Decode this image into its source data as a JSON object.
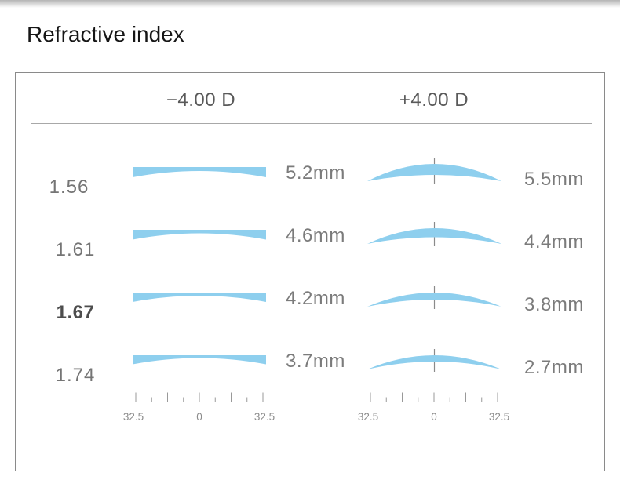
{
  "page": {
    "title": "Refractive index"
  },
  "panel": {
    "columns": [
      {
        "id": "minus",
        "header": "−4.00 D"
      },
      {
        "id": "plus",
        "header": "+4.00 D"
      }
    ],
    "rows": [
      {
        "index": "1.56",
        "highlight": false,
        "minus_mm": "5.2mm",
        "plus_mm": "5.5mm"
      },
      {
        "index": "1.61",
        "highlight": false,
        "minus_mm": "4.6mm",
        "plus_mm": "4.4mm"
      },
      {
        "index": "1.67",
        "highlight": true,
        "minus_mm": "4.2mm",
        "plus_mm": "3.8mm"
      },
      {
        "index": "1.74",
        "highlight": false,
        "minus_mm": "3.7mm",
        "plus_mm": "2.7mm"
      }
    ],
    "ruler": {
      "left_label": "32.5",
      "center_label": "0",
      "right_label": "32.5"
    }
  },
  "colors": {
    "lens_blue": "#8ECFEE",
    "ruler_gray": "#999999",
    "tick_gray": "#8a8a8a"
  },
  "chart_data": {
    "type": "table",
    "title": "Refractive index",
    "categories": [
      "1.56",
      "1.61",
      "1.67",
      "1.74"
    ],
    "series": [
      {
        "name": "−4.00 D",
        "values": [
          5.2,
          4.6,
          4.2,
          3.7
        ]
      },
      {
        "name": "+4.00 D",
        "values": [
          5.5,
          4.4,
          3.8,
          2.7
        ]
      }
    ],
    "value_unit": "mm",
    "highlighted_category": "1.67",
    "ruler_axis": {
      "tick_labels": [
        "32.5",
        "0",
        "32.5"
      ]
    },
    "layout_hints": {
      "two_columns": true,
      "lens_cross_sections": true,
      "rulers_below_last_row": true
    }
  }
}
